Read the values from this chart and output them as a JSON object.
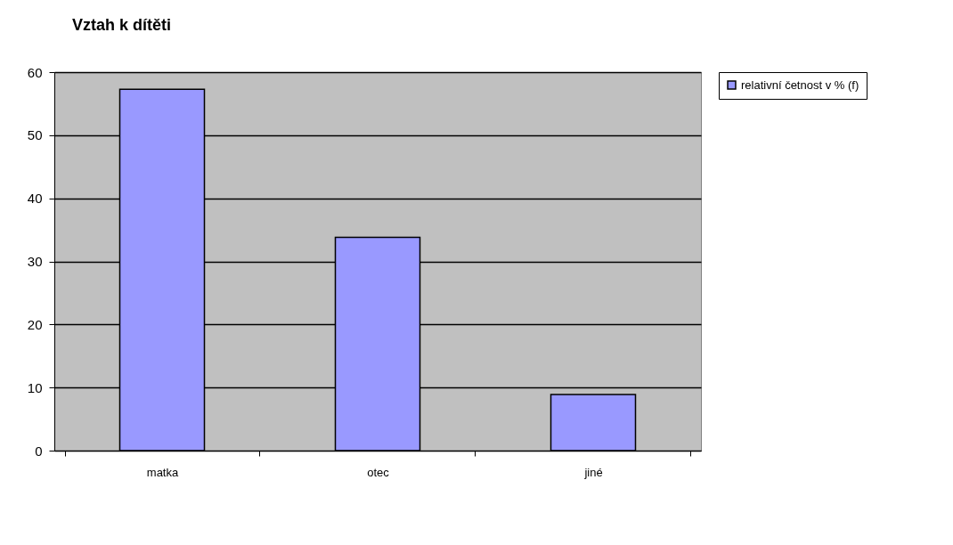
{
  "chart_data": {
    "type": "bar",
    "title": "Vztah k dítěti",
    "categories": [
      "matka",
      "otec",
      "jiné"
    ],
    "series": [
      {
        "name": "relativní četnost v % (f)",
        "color": "#9999ff",
        "values": [
          57.3,
          33.8,
          8.9
        ]
      }
    ],
    "ylim": [
      0,
      60
    ],
    "yticks": [
      0,
      10,
      20,
      30,
      40,
      50,
      60
    ],
    "grid": "y",
    "legend": "right"
  }
}
